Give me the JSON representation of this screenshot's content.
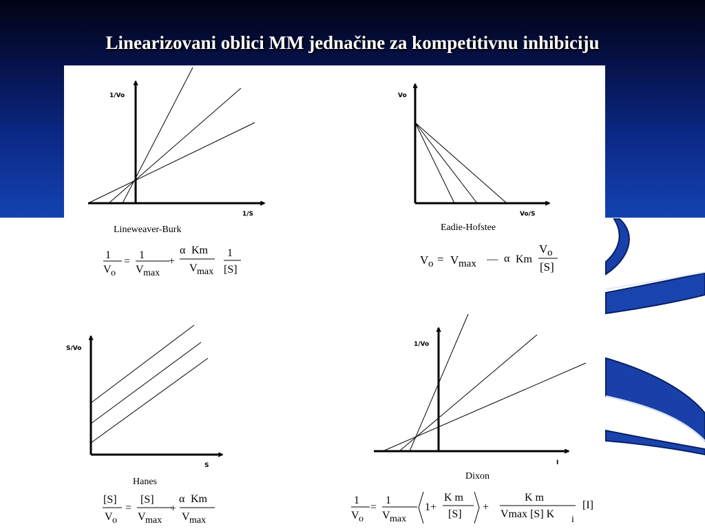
{
  "slide": {
    "title": "Linearizovani oblici MM jednačine za kompetitivnu inhibiciju",
    "colors": {
      "background_top": "#0b2a8a",
      "background_bottom": "#ffffff",
      "title_text": "#ffffff",
      "decor": "#1840a8"
    }
  },
  "graphs": [
    {
      "id": "lineweaver-burk",
      "name": "Lineweaver-Burk",
      "y_axis_label": "1/Vo",
      "x_axis_label": "1/S",
      "equation": {
        "lhs": {
          "num": "1",
          "den_base": "V",
          "den_sub": "o"
        },
        "t1": {
          "num": "1",
          "den_base": "V",
          "den_sub": "max"
        },
        "t2": {
          "alpha": "α",
          "num": "Km",
          "den_base": "V",
          "den_sub": "max"
        },
        "t3": {
          "num": "1",
          "den": "[S]"
        },
        "eq_sign": "=",
        "plus": "+"
      }
    },
    {
      "id": "eadie-hofstee",
      "name": "Eadie-Hofstee",
      "y_axis_label": "Vo",
      "x_axis_label": "Vo/S",
      "equation": {
        "lhs_base": "V",
        "lhs_sub": "o",
        "eq_sign": "=",
        "vmax_base": "V",
        "vmax_sub": "max",
        "minus": "—",
        "alpha": "α",
        "km": "Km",
        "frac_num_base": "V",
        "frac_num_sub": "o",
        "frac_den": "[S]"
      }
    },
    {
      "id": "hanes",
      "name": "Hanes",
      "y_axis_label": "S/Vo",
      "x_axis_label": "S",
      "equation": {
        "lhs": {
          "num": "[S]",
          "den_base": "V",
          "den_sub": "o"
        },
        "t1": {
          "num": "[S]",
          "den_base": "V",
          "den_sub": "max"
        },
        "t2": {
          "alpha": "α",
          "num": "Km",
          "den_base": "V",
          "den_sub": "max"
        },
        "eq_sign": "=",
        "plus": "+"
      }
    },
    {
      "id": "dixon",
      "name": "Dixon",
      "y_axis_label": "1/Vo",
      "x_axis_label": "I",
      "equation": {
        "lhs": {
          "num": "1",
          "den_base": "V",
          "den_sub": "o"
        },
        "t1": {
          "num": "1",
          "den_base": "V",
          "den_sub": "max"
        },
        "bracket_one": "1+",
        "inner": {
          "num": "K m",
          "den": "[S]"
        },
        "t2": {
          "num": "K m",
          "den": "Vmax [S] K",
          "den_sub": "i"
        },
        "eq_sign": "=",
        "plus": "+",
        "last": "[I]"
      }
    }
  ]
}
